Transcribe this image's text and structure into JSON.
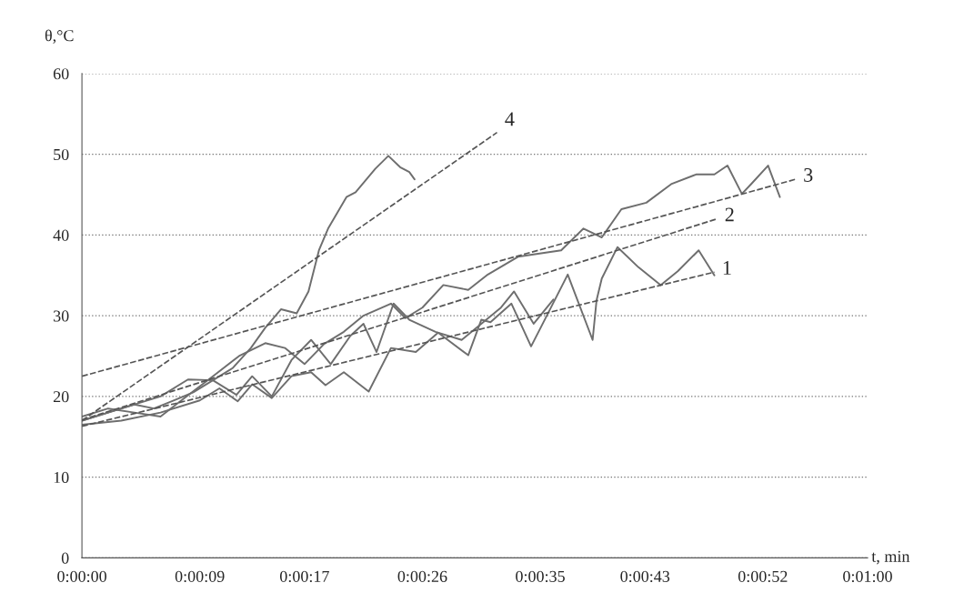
{
  "chart_data": {
    "type": "line",
    "ylabel": "θ,°C",
    "xlabel": "t, min",
    "xlim": [
      0,
      60
    ],
    "ylim": [
      0,
      60
    ],
    "xticks": [
      {
        "value": 0,
        "label": "0:00:00"
      },
      {
        "value": 9,
        "label": "0:00:09"
      },
      {
        "value": 17,
        "label": "0:00:17"
      },
      {
        "value": 26,
        "label": "0:00:26"
      },
      {
        "value": 35,
        "label": "0:00:35"
      },
      {
        "value": 43,
        "label": "0:00:43"
      },
      {
        "value": 52,
        "label": "0:00:52"
      },
      {
        "value": 60,
        "label": "0:01:00"
      }
    ],
    "yticks": [
      0,
      10,
      20,
      30,
      40,
      50,
      60
    ],
    "grid": "y",
    "legend": false,
    "series": [
      {
        "color": "#6e6e6e",
        "line_style": "solid",
        "x": [
          0,
          2,
          4,
          5.5,
          7,
          8.5,
          10,
          11.5,
          12.9,
          14,
          15.2,
          16.4,
          17.3,
          18.1,
          18.8,
          20.2,
          20.9,
          22.4,
          23.4,
          24.3,
          25.0,
          25.4
        ],
        "values": [
          17,
          18,
          19,
          18.5,
          19.5,
          20.5,
          22,
          23.5,
          26,
          28.5,
          30.8,
          30.3,
          33,
          38.1,
          40.8,
          44.7,
          45.3,
          48.2,
          49.8,
          48.4,
          47.8,
          46.9
        ]
      },
      {
        "color": "#6e6e6e",
        "line_style": "solid",
        "x": [
          0,
          2,
          4,
          6,
          8,
          10,
          12,
          14,
          15.5,
          17,
          18.5,
          20,
          21.5,
          23.6,
          24.7,
          26,
          27.6,
          29.5,
          31,
          33.3,
          36.6,
          38.3,
          39.7,
          41.2,
          43.1,
          45.0,
          46.9,
          48.3,
          49.3,
          50.4,
          51.1,
          52.4,
          53.3
        ],
        "values": [
          17.5,
          18.5,
          18,
          17.5,
          20,
          22.5,
          25,
          26.6,
          26,
          24,
          26.5,
          28,
          30,
          31.5,
          29.7,
          31,
          33.8,
          33.2,
          35.1,
          37.3,
          38.1,
          40.8,
          39.7,
          43.2,
          44.0,
          46.3,
          47.5,
          47.5,
          48.6,
          45.1,
          46.3,
          48.6,
          44.7
        ]
      },
      {
        "color": "#6e6e6e",
        "line_style": "solid",
        "x": [
          0,
          3,
          6,
          8.1,
          10,
          11.8,
          13,
          14.5,
          16,
          17.5,
          19,
          20.5,
          21.5,
          22.5,
          23.8,
          25,
          27,
          29,
          30.5,
          32,
          33,
          34.5,
          36
        ],
        "values": [
          17,
          18.5,
          20,
          22.1,
          22,
          20.2,
          22.5,
          20,
          24.5,
          27,
          24,
          27.5,
          29,
          25.5,
          31.5,
          29.5,
          28,
          27,
          29,
          31,
          33,
          29,
          32
        ]
      },
      {
        "color": "#6e6e6e",
        "line_style": "solid",
        "x": [
          0,
          3,
          6,
          9,
          10.5,
          11.9,
          13,
          14.5,
          16,
          17.5,
          18.6,
          20,
          21.9,
          23.6,
          25.5,
          27.2,
          29.5,
          30.5,
          31.2,
          32.8,
          34.3,
          35.5,
          37.1,
          39.0,
          39.3,
          39.7,
          40.9,
          42.5,
          44.2,
          45.5,
          47.1,
          48.3
        ],
        "values": [
          16.5,
          17,
          18,
          19.5,
          21,
          19.4,
          21.5,
          19.8,
          22.5,
          23,
          21.4,
          23,
          20.6,
          26,
          25.5,
          27.9,
          25.1,
          29.5,
          29.2,
          31.5,
          26.2,
          30,
          35.1,
          27,
          31.9,
          34.6,
          38.5,
          36,
          33.8,
          35.5,
          38.1,
          35
        ]
      },
      {
        "color": "#555555",
        "line_style": "dashed",
        "x": [
          0,
          31.7
        ],
        "values": [
          17,
          52.7
        ]
      },
      {
        "color": "#555555",
        "line_style": "dashed",
        "x": [
          0,
          54.5
        ],
        "values": [
          22.5,
          46.9
        ]
      },
      {
        "color": "#555555",
        "line_style": "dashed",
        "x": [
          0,
          48.5
        ],
        "values": [
          17.1,
          42.0
        ]
      },
      {
        "color": "#555555",
        "line_style": "dashed",
        "x": [
          0,
          48.3
        ],
        "values": [
          16.3,
          35.4
        ]
      }
    ],
    "annotations": [
      {
        "text": "4",
        "x": 31.7,
        "y": 52.7
      },
      {
        "text": "3",
        "x": 54.5,
        "y": 46.9
      },
      {
        "text": "2",
        "x": 48.5,
        "y": 42.0
      },
      {
        "text": "1",
        "x": 48.3,
        "y": 35.4
      }
    ]
  }
}
